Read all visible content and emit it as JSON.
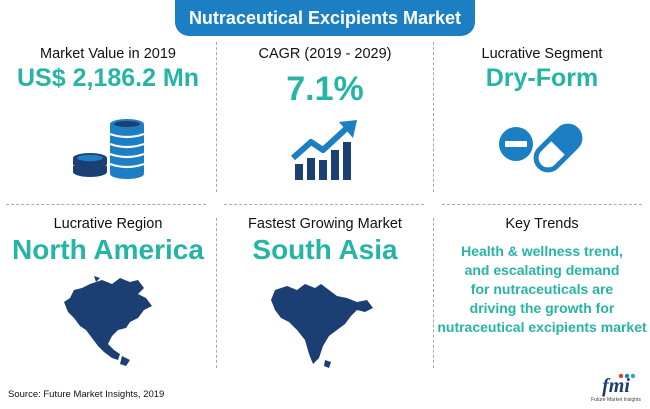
{
  "title": "Nutraceutical Excipients Market",
  "cells": [
    {
      "label": "Market Value in 2019",
      "value": "US$ 2,186.2 Mn",
      "icon": "coins-stack-icon"
    },
    {
      "label": "CAGR (2019 - 2029)",
      "value": "7.1%",
      "icon": "growth-chart-icon"
    },
    {
      "label": "Lucrative Segment",
      "value": "Dry-Form",
      "icon": "pills-icon"
    },
    {
      "label": "Lucrative Region",
      "value": "North America",
      "icon": "north-america-map-icon"
    },
    {
      "label": "Fastest Growing Market",
      "value": "South Asia",
      "icon": "south-asia-map-icon"
    },
    {
      "label": "Key Trends",
      "value": "",
      "icon": ""
    }
  ],
  "trends": [
    "Health & wellness trend,",
    "and escalating demand",
    "for nutraceuticals are",
    "driving the growth for",
    "nutraceutical excipients market"
  ],
  "source": "Source: Future Market Insights, 2019",
  "logo": {
    "text": "fmi",
    "subtext": "Future Market Insights"
  },
  "colors": {
    "accent": "#1c7fc4",
    "value": "#26b5a4",
    "icon_dark": "#1c3f73"
  }
}
